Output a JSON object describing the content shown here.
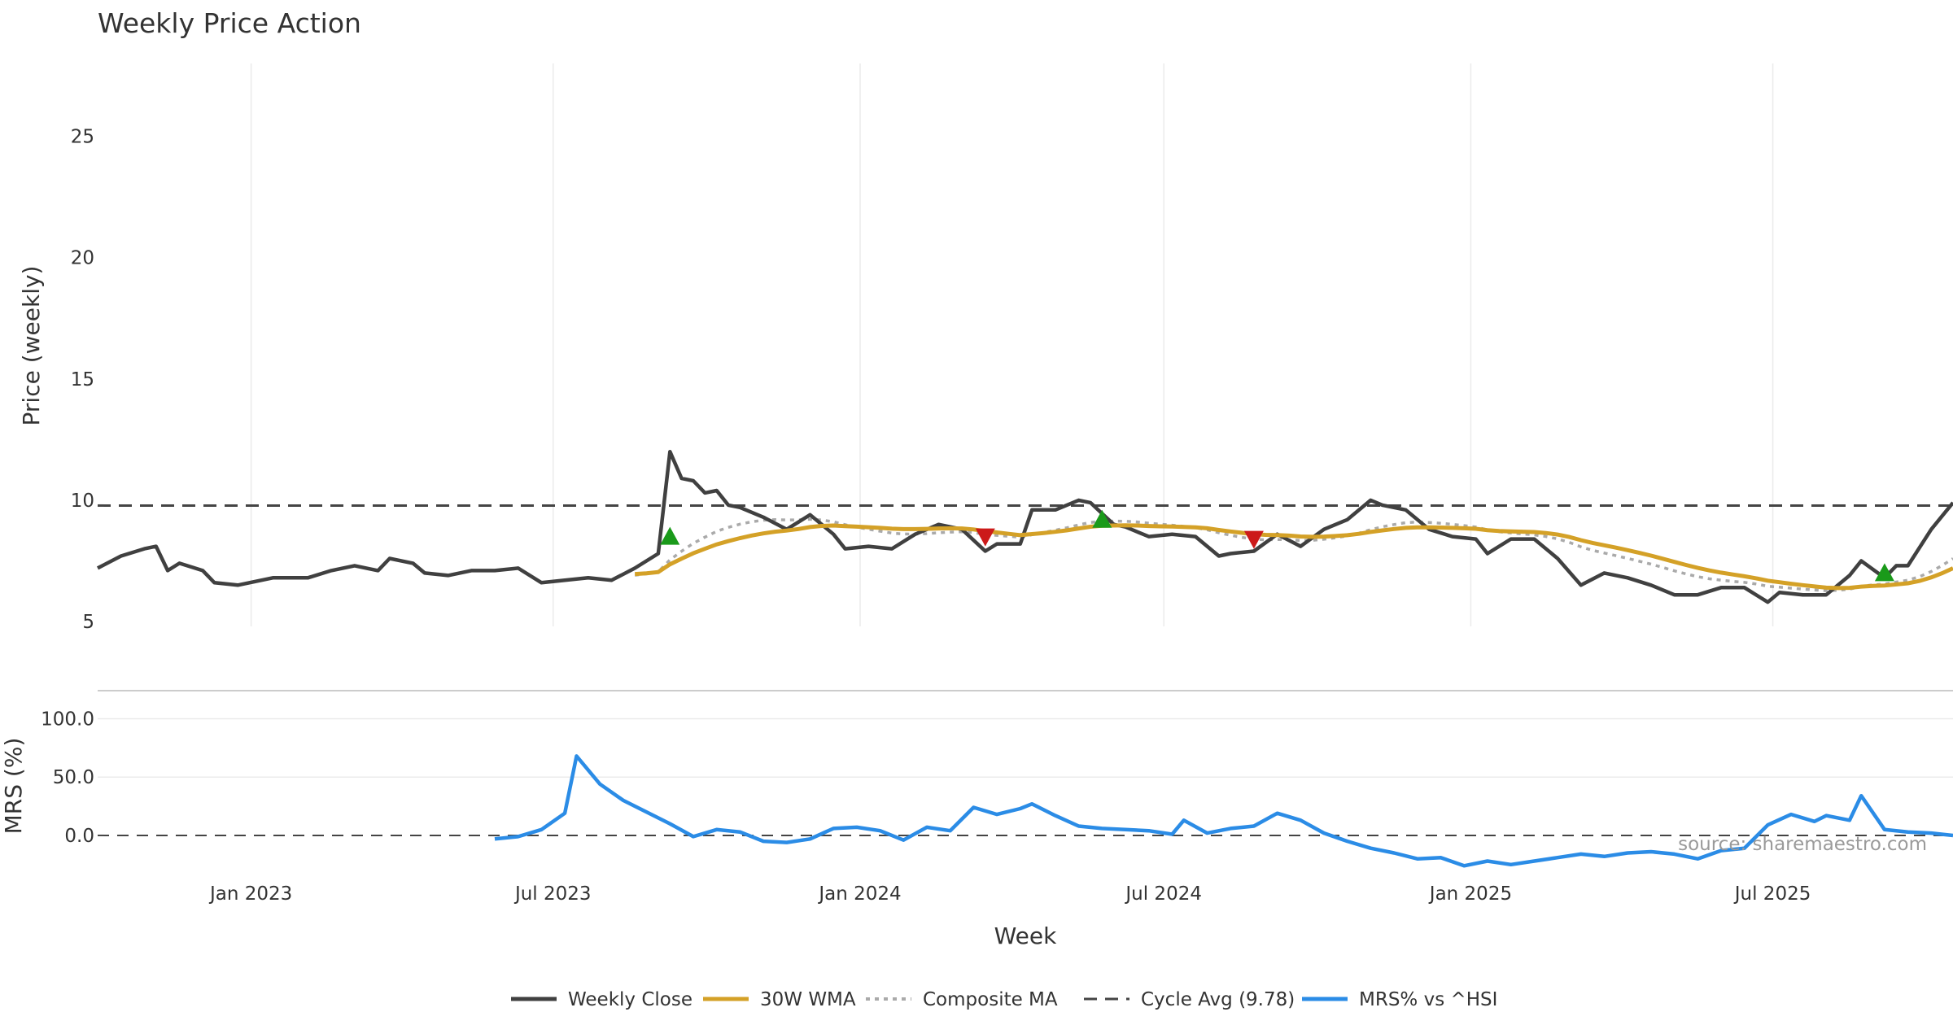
{
  "chart_data": [
    {
      "type": "line",
      "title": "Weekly Price Action",
      "xlabel": "",
      "ylabel": "Price (weekly)",
      "x_start": "2022-10-01",
      "x_end": "2025-10-17",
      "ylim": [
        4.8,
        28
      ],
      "yticks": [
        5,
        10,
        15,
        20,
        25
      ],
      "grid": "vertical",
      "cycle_avg": 9.78,
      "series": [
        {
          "name": "Weekly Close",
          "color": "#404040",
          "points": [
            [
              "2022-10-01",
              7.2
            ],
            [
              "2022-10-15",
              7.7
            ],
            [
              "2022-10-29",
              8.0
            ],
            [
              "2022-11-05",
              8.1
            ],
            [
              "2022-11-12",
              7.1
            ],
            [
              "2022-11-19",
              7.4
            ],
            [
              "2022-12-03",
              7.1
            ],
            [
              "2022-12-10",
              6.6
            ],
            [
              "2022-12-24",
              6.5
            ],
            [
              "2023-01-14",
              6.8
            ],
            [
              "2023-02-04",
              6.8
            ],
            [
              "2023-02-18",
              7.1
            ],
            [
              "2023-03-04",
              7.3
            ],
            [
              "2023-03-18",
              7.1
            ],
            [
              "2023-03-25",
              7.6
            ],
            [
              "2023-04-08",
              7.4
            ],
            [
              "2023-04-15",
              7.0
            ],
            [
              "2023-04-29",
              6.9
            ],
            [
              "2023-05-13",
              7.1
            ],
            [
              "2023-05-27",
              7.1
            ],
            [
              "2023-06-10",
              7.2
            ],
            [
              "2023-06-24",
              6.6
            ],
            [
              "2023-07-08",
              6.7
            ],
            [
              "2023-07-22",
              6.8
            ],
            [
              "2023-08-05",
              6.7
            ],
            [
              "2023-08-19",
              7.2
            ],
            [
              "2023-09-02",
              7.8
            ],
            [
              "2023-09-09",
              12.0
            ],
            [
              "2023-09-16",
              10.9
            ],
            [
              "2023-09-23",
              10.8
            ],
            [
              "2023-09-30",
              10.3
            ],
            [
              "2023-10-07",
              10.4
            ],
            [
              "2023-10-14",
              9.8
            ],
            [
              "2023-10-21",
              9.7
            ],
            [
              "2023-11-04",
              9.3
            ],
            [
              "2023-11-18",
              8.8
            ],
            [
              "2023-12-02",
              9.4
            ],
            [
              "2023-12-16",
              8.6
            ],
            [
              "2023-12-23",
              8.0
            ],
            [
              "2024-01-06",
              8.1
            ],
            [
              "2024-01-20",
              8.0
            ],
            [
              "2024-02-03",
              8.6
            ],
            [
              "2024-02-17",
              9.0
            ],
            [
              "2024-03-02",
              8.8
            ],
            [
              "2024-03-16",
              7.9
            ],
            [
              "2024-03-23",
              8.2
            ],
            [
              "2024-04-06",
              8.2
            ],
            [
              "2024-04-13",
              9.6
            ],
            [
              "2024-04-27",
              9.6
            ],
            [
              "2024-05-11",
              10.0
            ],
            [
              "2024-05-18",
              9.9
            ],
            [
              "2024-06-01",
              9.0
            ],
            [
              "2024-06-08",
              8.9
            ],
            [
              "2024-06-22",
              8.5
            ],
            [
              "2024-07-06",
              8.6
            ],
            [
              "2024-07-20",
              8.5
            ],
            [
              "2024-08-03",
              7.7
            ],
            [
              "2024-08-10",
              7.8
            ],
            [
              "2024-08-24",
              7.9
            ],
            [
              "2024-09-07",
              8.6
            ],
            [
              "2024-09-21",
              8.1
            ],
            [
              "2024-10-05",
              8.8
            ],
            [
              "2024-10-19",
              9.2
            ],
            [
              "2024-11-02",
              10.0
            ],
            [
              "2024-11-09",
              9.8
            ],
            [
              "2024-11-23",
              9.6
            ],
            [
              "2024-12-07",
              8.8
            ],
            [
              "2024-12-21",
              8.5
            ],
            [
              "2025-01-04",
              8.4
            ],
            [
              "2025-01-11",
              7.8
            ],
            [
              "2025-01-25",
              8.4
            ],
            [
              "2025-02-08",
              8.4
            ],
            [
              "2025-02-22",
              7.6
            ],
            [
              "2025-03-08",
              6.5
            ],
            [
              "2025-03-22",
              7.0
            ],
            [
              "2025-04-05",
              6.8
            ],
            [
              "2025-04-19",
              6.5
            ],
            [
              "2025-05-03",
              6.1
            ],
            [
              "2025-05-17",
              6.1
            ],
            [
              "2025-05-31",
              6.4
            ],
            [
              "2025-06-14",
              6.4
            ],
            [
              "2025-06-28",
              5.8
            ],
            [
              "2025-07-05",
              6.2
            ],
            [
              "2025-07-19",
              6.1
            ],
            [
              "2025-08-02",
              6.1
            ],
            [
              "2025-08-16",
              6.9
            ],
            [
              "2025-08-23",
              7.5
            ],
            [
              "2025-09-06",
              6.8
            ],
            [
              "2025-09-13",
              7.3
            ],
            [
              "2025-09-20",
              7.3
            ],
            [
              "2025-10-04",
              8.8
            ],
            [
              "2025-10-17",
              9.9
            ]
          ]
        }
      ]
    },
    {
      "type": "line",
      "title": "",
      "xlabel": "Week",
      "ylabel": "MRS (%)",
      "ylim": [
        -30,
        115
      ],
      "yticks": [
        0.0,
        50.0,
        100.0
      ],
      "grid": "horizontal",
      "series": [
        {
          "name": "MRS% vs ^HSI",
          "color": "#2b8ce6",
          "points": [
            [
              "2023-05-27",
              -3
            ],
            [
              "2023-06-10",
              -1
            ],
            [
              "2023-06-24",
              5
            ],
            [
              "2023-07-08",
              19
            ],
            [
              "2023-07-15",
              68
            ],
            [
              "2023-07-29",
              44
            ],
            [
              "2023-08-12",
              30
            ],
            [
              "2023-08-26",
              20
            ],
            [
              "2023-09-09",
              10
            ],
            [
              "2023-09-23",
              -1
            ],
            [
              "2023-10-07",
              5
            ],
            [
              "2023-10-21",
              3
            ],
            [
              "2023-11-04",
              -5
            ],
            [
              "2023-11-18",
              -6
            ],
            [
              "2023-12-02",
              -3
            ],
            [
              "2023-12-16",
              6
            ],
            [
              "2023-12-30",
              7
            ],
            [
              "2024-01-13",
              4
            ],
            [
              "2024-01-27",
              -4
            ],
            [
              "2024-02-10",
              7
            ],
            [
              "2024-02-24",
              4
            ],
            [
              "2024-03-09",
              24
            ],
            [
              "2024-03-23",
              18
            ],
            [
              "2024-04-06",
              23
            ],
            [
              "2024-04-13",
              27
            ],
            [
              "2024-04-27",
              17
            ],
            [
              "2024-05-11",
              8
            ],
            [
              "2024-05-25",
              6
            ],
            [
              "2024-06-08",
              5
            ],
            [
              "2024-06-22",
              4
            ],
            [
              "2024-07-06",
              1
            ],
            [
              "2024-07-13",
              13
            ],
            [
              "2024-07-27",
              2
            ],
            [
              "2024-08-10",
              6
            ],
            [
              "2024-08-24",
              8
            ],
            [
              "2024-09-07",
              19
            ],
            [
              "2024-09-21",
              13
            ],
            [
              "2024-10-05",
              2
            ],
            [
              "2024-10-19",
              -5
            ],
            [
              "2024-11-02",
              -11
            ],
            [
              "2024-11-16",
              -15
            ],
            [
              "2024-11-30",
              -20
            ],
            [
              "2024-12-14",
              -19
            ],
            [
              "2024-12-28",
              -26
            ],
            [
              "2025-01-11",
              -22
            ],
            [
              "2025-01-25",
              -25
            ],
            [
              "2025-02-08",
              -22
            ],
            [
              "2025-02-22",
              -19
            ],
            [
              "2025-03-08",
              -16
            ],
            [
              "2025-03-22",
              -18
            ],
            [
              "2025-04-05",
              -15
            ],
            [
              "2025-04-19",
              -14
            ],
            [
              "2025-05-03",
              -16
            ],
            [
              "2025-05-17",
              -20
            ],
            [
              "2025-05-31",
              -13
            ],
            [
              "2025-06-14",
              -11
            ],
            [
              "2025-06-28",
              9
            ],
            [
              "2025-07-12",
              18
            ],
            [
              "2025-07-26",
              12
            ],
            [
              "2025-08-02",
              17
            ],
            [
              "2025-08-16",
              13
            ],
            [
              "2025-08-23",
              34
            ],
            [
              "2025-09-06",
              5
            ],
            [
              "2025-09-20",
              3
            ],
            [
              "2025-10-04",
              2
            ],
            [
              "2025-10-17",
              0
            ]
          ]
        }
      ]
    }
  ],
  "x_axis": {
    "label": "Week",
    "ticks": [
      {
        "label": "Jan 2023",
        "date": "2023-01-01"
      },
      {
        "label": "Jul 2023",
        "date": "2023-07-01"
      },
      {
        "label": "Jan 2024",
        "date": "2024-01-01"
      },
      {
        "label": "Jul 2024",
        "date": "2024-07-01"
      },
      {
        "label": "Jan 2025",
        "date": "2025-01-01"
      },
      {
        "label": "Jul 2025",
        "date": "2025-07-01"
      }
    ]
  },
  "legend": [
    {
      "label": "Weekly Close",
      "color": "#404040",
      "style": "solid"
    },
    {
      "label": "30W WMA",
      "color": "#d4a127",
      "style": "solid"
    },
    {
      "label": "Composite MA",
      "color": "#aaaaaa",
      "style": "dotted"
    },
    {
      "label": "Cycle Avg (9.78)",
      "color": "#444444",
      "style": "dashed"
    },
    {
      "label": "MRS% vs ^HSI",
      "color": "#2b8ce6",
      "style": "solid"
    }
  ],
  "source": "source: sharemaestro.com",
  "colors": {
    "close": "#404040",
    "wma": "#d4a127",
    "composite": "#aaaaaa",
    "cycle": "#444444",
    "mrs": "#2b8ce6",
    "buy": "#1a9a1a",
    "sell": "#cc1a1a",
    "grid": "#ebebeb"
  }
}
